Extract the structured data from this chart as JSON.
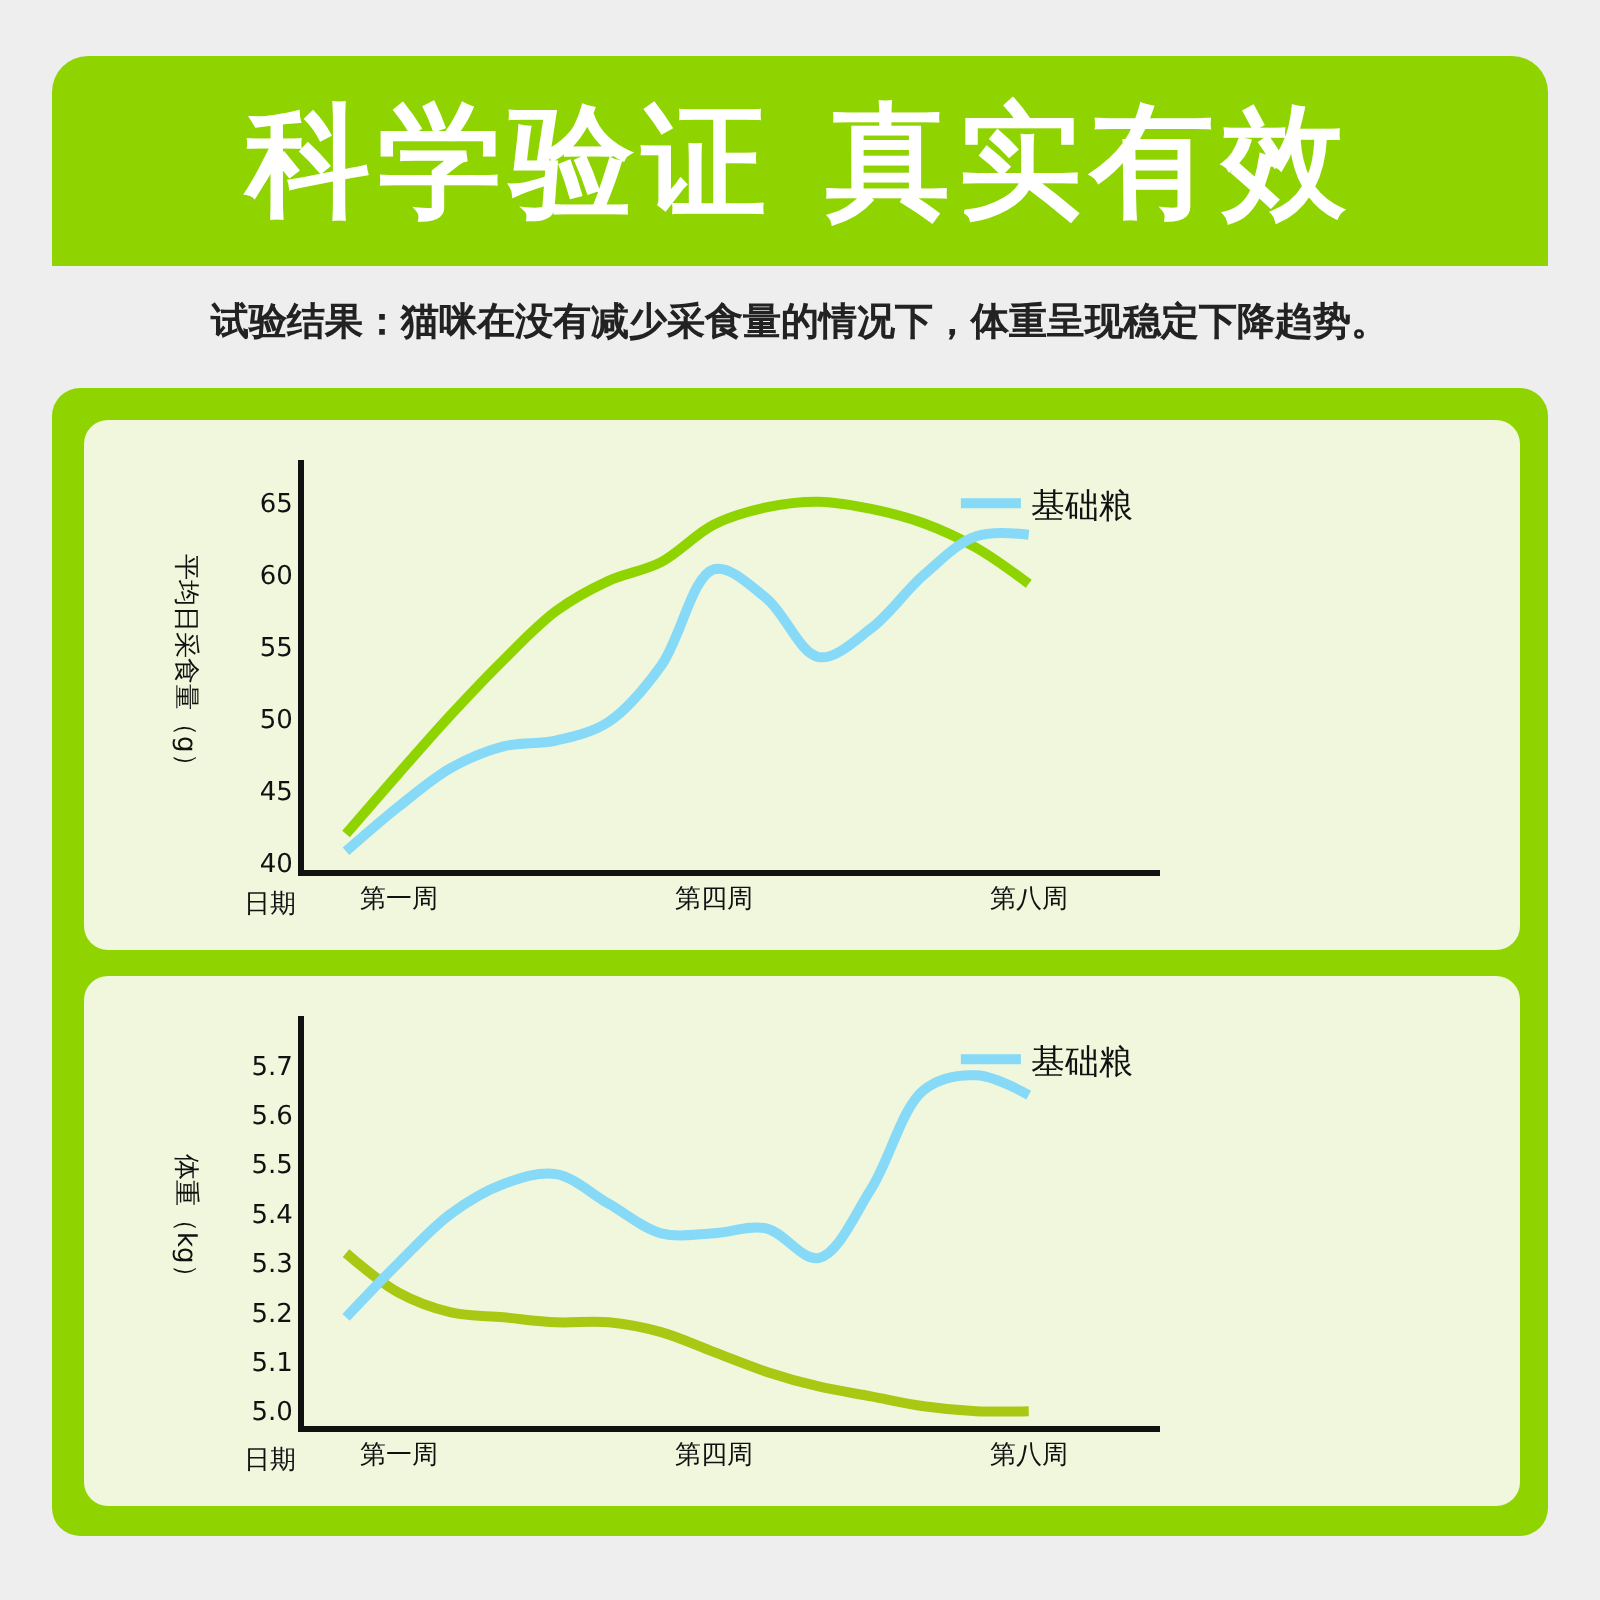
{
  "chart_data": [
    {
      "type": "line",
      "title": "科学验证 真实有效",
      "subtitle": "试验结果：猫咪在没有减少采食量的情况下，体重呈现稳定下降趋势。",
      "xlabel": "日期",
      "ylabel": "平均日采食量（g）",
      "categories": [
        null,
        "第一周",
        null,
        null,
        null,
        null,
        null,
        "第四周",
        null,
        null,
        null,
        null,
        null,
        "第八周"
      ],
      "series": [
        {
          "color": "#8fd400",
          "values": [
            42.0,
            46.2,
            50.3,
            54.1,
            57.5,
            59.6,
            60.9,
            63.5,
            64.7,
            65.1,
            64.6,
            63.6,
            61.9,
            59.4
          ]
        },
        {
          "name": "基础粮",
          "color": "#86d9f7",
          "values": [
            40.8,
            43.9,
            46.6,
            48.1,
            48.5,
            49.8,
            53.7,
            60.4,
            58.4,
            54.3,
            56.3,
            60.0,
            62.7,
            62.8
          ]
        }
      ],
      "ylim": [
        39.5,
        68
      ],
      "yticks": [
        40,
        45,
        50,
        55,
        60,
        65
      ],
      "grid": false,
      "legend": "top right",
      "line_style": "solid"
    },
    {
      "type": "line",
      "xlabel": "日期",
      "ylabel": "体重（kg）",
      "categories": [
        null,
        "第一周",
        null,
        null,
        null,
        null,
        null,
        "第四周",
        null,
        null,
        null,
        null,
        null,
        "第八周"
      ],
      "series": [
        {
          "color": "#a8c814",
          "values": [
            5.32,
            5.24,
            5.2,
            5.19,
            5.18,
            5.18,
            5.16,
            5.12,
            5.08,
            5.05,
            5.03,
            5.01,
            5.0,
            5.0
          ]
        },
        {
          "name": "基础粮",
          "color": "#86d9f7",
          "values": [
            5.19,
            5.3,
            5.4,
            5.46,
            5.48,
            5.42,
            5.36,
            5.36,
            5.37,
            5.31,
            5.45,
            5.65,
            5.68,
            5.64
          ]
        }
      ],
      "ylim": [
        4.97,
        5.8
      ],
      "yticks": [
        {
          "value": 5,
          "label": "5.0"
        },
        5.1,
        5.2,
        5.3,
        5.4,
        5.5,
        5.6,
        5.7
      ],
      "grid": false,
      "legend": "top right",
      "line_style": "solid"
    }
  ]
}
